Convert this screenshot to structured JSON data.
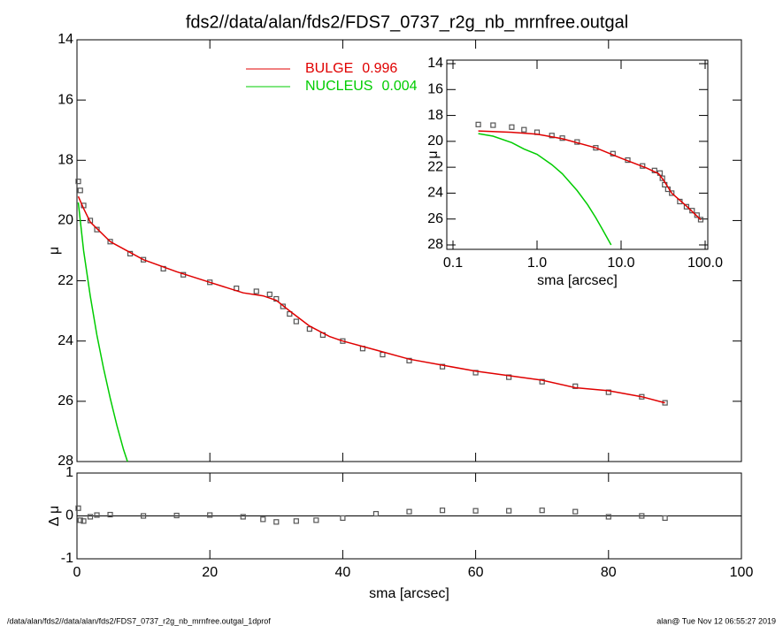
{
  "title": "fds2//data/alan/fds2/FDS7_0737_r2g_nb_mrnfree.outgal",
  "footer": {
    "left": "/data/alan/fds2//data/alan/fds2/FDS7_0737_r2g_nb_mrnfree.outgal_1dprof",
    "right": "alan@  Tue Nov 12 06:55:27 2019"
  },
  "chart_data": [
    {
      "type": "line",
      "ylabel": "μ",
      "xlim": [
        0,
        100
      ],
      "xticks": [
        0,
        20,
        40,
        60,
        80,
        100
      ],
      "ylim": [
        14,
        28
      ],
      "y_inverted": true,
      "yticks": [
        14,
        16,
        18,
        20,
        22,
        24,
        26,
        28
      ],
      "legend": "upper center",
      "series": [
        {
          "name": "data",
          "color": "#555555",
          "mode": "markers",
          "x": [
            0.2,
            0.5,
            1,
            2,
            3,
            5,
            8,
            10,
            13,
            16,
            20,
            24,
            27,
            29,
            30,
            31,
            32,
            33,
            35,
            37,
            40,
            43,
            46,
            50,
            55,
            60,
            65,
            70,
            75,
            80,
            85,
            88.5
          ],
          "values": [
            18.7,
            19.0,
            19.5,
            20.0,
            20.3,
            20.7,
            21.1,
            21.3,
            21.6,
            21.8,
            22.05,
            22.25,
            22.35,
            22.45,
            22.6,
            22.85,
            23.1,
            23.35,
            23.6,
            23.8,
            24.0,
            24.25,
            24.45,
            24.65,
            24.85,
            25.05,
            25.2,
            25.35,
            25.5,
            25.7,
            25.85,
            26.05
          ]
        },
        {
          "name": "BULGE",
          "fraction": 0.996,
          "color": "#e00000",
          "mode": "line",
          "x": [
            0.2,
            1,
            2,
            5,
            10,
            15,
            20,
            25,
            28,
            30,
            32,
            35,
            38,
            40,
            45,
            50,
            55,
            60,
            65,
            70,
            75,
            80,
            85,
            88.5
          ],
          "values": [
            19.2,
            19.6,
            20.05,
            20.7,
            21.3,
            21.7,
            22.05,
            22.4,
            22.5,
            22.65,
            23.0,
            23.5,
            23.85,
            24.0,
            24.3,
            24.6,
            24.8,
            25.0,
            25.15,
            25.3,
            25.55,
            25.65,
            25.85,
            26.05
          ]
        },
        {
          "name": "NUCLEUS",
          "fraction": 0.004,
          "color": "#00cc00",
          "mode": "line",
          "x": [
            0.2,
            1,
            2,
            3,
            4,
            5,
            6,
            7,
            7.6
          ],
          "values": [
            19.4,
            21.0,
            22.5,
            23.8,
            24.9,
            25.9,
            26.8,
            27.6,
            28
          ]
        }
      ]
    },
    {
      "type": "scatter",
      "ylabel": "Δ μ",
      "xlabel": "sma [arcsec]",
      "xlim": [
        0,
        100
      ],
      "xticks": [
        0,
        20,
        40,
        60,
        80,
        100
      ],
      "ylim": [
        -1,
        1
      ],
      "yticks": [
        -1,
        0,
        1
      ],
      "zero_line": true,
      "series": [
        {
          "name": "residual",
          "color": "#555555",
          "mode": "markers",
          "x": [
            0.2,
            0.5,
            1,
            2,
            3,
            5,
            10,
            15,
            20,
            25,
            28,
            30,
            33,
            36,
            40,
            45,
            50,
            55,
            60,
            65,
            70,
            75,
            80,
            85,
            88.5
          ],
          "values": [
            0.18,
            -0.1,
            -0.12,
            -0.02,
            0.02,
            0.03,
            0.0,
            0.01,
            0.02,
            -0.02,
            -0.08,
            -0.14,
            -0.12,
            -0.1,
            -0.05,
            0.05,
            0.1,
            0.13,
            0.12,
            0.12,
            0.13,
            0.1,
            -0.02,
            0.0,
            -0.05
          ]
        }
      ]
    },
    {
      "type": "line",
      "ylabel": "μ",
      "xlabel": "sma [arcsec]",
      "log_x": true,
      "xlim": [
        0.1,
        100
      ],
      "xticks": [
        0.1,
        {
          "value": 1,
          "label": "1.0"
        },
        {
          "value": 10,
          "label": "10.0"
        },
        {
          "value": 100,
          "label": "100.0"
        }
      ],
      "ylim": [
        14,
        28
      ],
      "y_inverted": true,
      "yticks": [
        14,
        16,
        18,
        20,
        22,
        24,
        26,
        28
      ],
      "series": [
        {
          "name": "data",
          "color": "#555555",
          "mode": "markers",
          "x": [
            0.2,
            0.3,
            0.5,
            0.7,
            1,
            1.5,
            2,
            3,
            5,
            8,
            12,
            18,
            25,
            29,
            31,
            33,
            36,
            40,
            50,
            60,
            70,
            80,
            88.5
          ],
          "values": [
            18.7,
            18.75,
            18.9,
            19.1,
            19.3,
            19.55,
            19.75,
            20.05,
            20.5,
            20.95,
            21.45,
            21.9,
            22.25,
            22.45,
            22.85,
            23.35,
            23.7,
            24.0,
            24.65,
            25.05,
            25.35,
            25.7,
            26.05
          ]
        },
        {
          "name": "BULGE",
          "color": "#e00000",
          "mode": "line",
          "x": [
            0.2,
            0.5,
            1,
            2,
            5,
            10,
            20,
            28,
            32,
            40,
            60,
            88.5
          ],
          "values": [
            19.2,
            19.3,
            19.45,
            19.8,
            20.5,
            21.3,
            22.05,
            22.5,
            23.0,
            24.0,
            25.0,
            26.05
          ]
        },
        {
          "name": "NUCLEUS",
          "color": "#00cc00",
          "mode": "line",
          "x": [
            0.2,
            0.3,
            0.5,
            0.7,
            1,
            1.5,
            2,
            3,
            4,
            5,
            6,
            7.6
          ],
          "values": [
            19.4,
            19.6,
            20.1,
            20.6,
            21.0,
            21.8,
            22.5,
            23.8,
            24.9,
            25.9,
            26.8,
            28
          ]
        }
      ]
    }
  ]
}
